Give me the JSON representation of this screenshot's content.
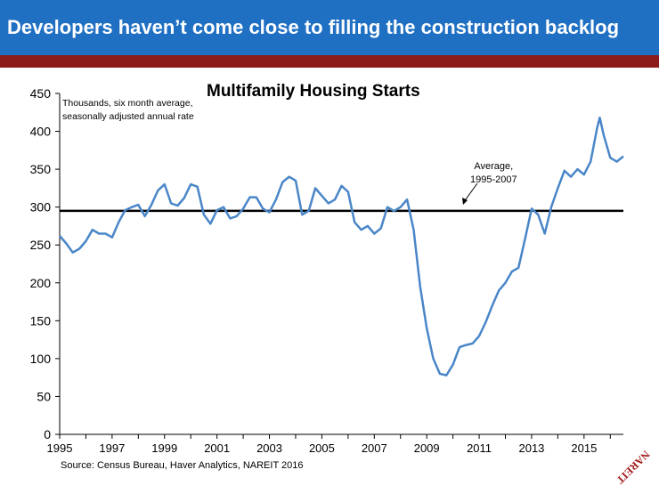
{
  "header": {
    "title": "Developers haven’t come close to filling the construction backlog"
  },
  "colors": {
    "banner": "#1f6fc3",
    "rule": "#8c1b1b",
    "series": "#4a86c8",
    "average_line": "#000000",
    "logo": "#a01c1c"
  },
  "logo_text": "NAREIT",
  "chart_data": {
    "type": "line",
    "title": "Multifamily Housing Starts",
    "units_note": [
      "Thousands, six month average,",
      "seasonally adjusted annual rate"
    ],
    "source": "Source: Census Bureau, Haver Analytics, NAREIT 2016",
    "ylim": [
      0,
      450
    ],
    "yticks": [
      0,
      50,
      100,
      150,
      200,
      250,
      300,
      350,
      400,
      450
    ],
    "xlim": [
      1995,
      2016.5
    ],
    "xticks": [
      "1995",
      "1997",
      "1999",
      "2001",
      "2003",
      "2005",
      "2007",
      "2009",
      "2011",
      "2013",
      "2015"
    ],
    "grid": false,
    "average": {
      "value": 295,
      "label": [
        "Average,",
        "1995-2007"
      ]
    },
    "series": [
      {
        "x": [
          1995.0,
          1995.25,
          1995.5,
          1995.75,
          1996.0,
          1996.25,
          1996.5,
          1996.75,
          1997.0,
          1997.25,
          1997.5,
          1997.75,
          1998.0,
          1998.25,
          1998.5,
          1998.75,
          1999.0,
          1999.25,
          1999.5,
          1999.75,
          2000.0,
          2000.25,
          2000.5,
          2000.75,
          2001.0,
          2001.25,
          2001.5,
          2001.75,
          2002.0,
          2002.25,
          2002.5,
          2002.75,
          2003.0,
          2003.25,
          2003.5,
          2003.75,
          2004.0,
          2004.25,
          2004.5,
          2004.75,
          2005.0,
          2005.25,
          2005.5,
          2005.75,
          2006.0,
          2006.25,
          2006.5,
          2006.75,
          2007.0,
          2007.25,
          2007.5,
          2007.75,
          2008.0,
          2008.25,
          2008.5,
          2008.75,
          2009.0,
          2009.25,
          2009.5,
          2009.75,
          2010.0,
          2010.25,
          2010.5,
          2010.75,
          2011.0,
          2011.25,
          2011.5,
          2011.75,
          2012.0,
          2012.25,
          2012.5,
          2012.75,
          2013.0,
          2013.25,
          2013.5,
          2013.75,
          2014.0,
          2014.25,
          2014.5,
          2014.75,
          2015.0,
          2015.25,
          2015.5,
          2015.6,
          2015.75,
          2016.0,
          2016.25,
          2016.5
        ],
        "y": [
          262,
          252,
          240,
          245,
          255,
          270,
          265,
          265,
          260,
          280,
          296,
          300,
          303,
          288,
          303,
          322,
          330,
          305,
          302,
          312,
          330,
          327,
          290,
          278,
          296,
          300,
          285,
          288,
          298,
          313,
          313,
          298,
          293,
          310,
          333,
          340,
          335,
          290,
          295,
          325,
          315,
          305,
          310,
          328,
          320,
          280,
          270,
          275,
          265,
          272,
          300,
          295,
          300,
          310,
          270,
          195,
          140,
          100,
          80,
          78,
          92,
          115,
          118,
          120,
          130,
          148,
          170,
          190,
          200,
          215,
          220,
          258,
          298,
          290,
          265,
          300,
          325,
          348,
          340,
          350,
          343,
          360,
          405,
          418,
          395,
          365,
          360,
          367
        ]
      }
    ]
  }
}
